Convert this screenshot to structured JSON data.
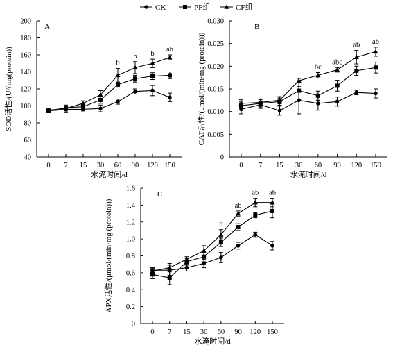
{
  "legend": {
    "items": [
      {
        "label": "CK",
        "marker": "circle"
      },
      {
        "label": "PF组",
        "marker": "square"
      },
      {
        "label": "CF组",
        "marker": "triangle"
      }
    ]
  },
  "chart_data": [
    {
      "type": "line",
      "panel_label": "A",
      "categories": [
        "0",
        "7",
        "15",
        "30",
        "60",
        "90",
        "120",
        "150"
      ],
      "xlabel": "水淹时间/d",
      "ylabel": "SOD活性/(U/(mg(protein))",
      "ylim": [
        40,
        200
      ],
      "yticks": [
        "40",
        "60",
        "80",
        "100",
        "120",
        "140",
        "160",
        "180",
        "200"
      ],
      "series": [
        {
          "name": "CK",
          "marker": "circle",
          "values": [
            94,
            96,
            96,
            97,
            105,
            117,
            118,
            110
          ],
          "errors": [
            2,
            4,
            2,
            4,
            3,
            3,
            6,
            5
          ]
        },
        {
          "name": "PF组",
          "marker": "square",
          "values": [
            94,
            98,
            99,
            107,
            125,
            132,
            135,
            136
          ],
          "errors": [
            2,
            3,
            4,
            4,
            3,
            4,
            4,
            4
          ]
        },
        {
          "name": "CF组",
          "marker": "triangle",
          "values": [
            95,
            97,
            103,
            113,
            136,
            145,
            150,
            157
          ],
          "errors": [
            2,
            3,
            3,
            5,
            8,
            7,
            5,
            3
          ]
        }
      ],
      "annotations": [
        "",
        "",
        "",
        "",
        "b",
        "b",
        "b",
        "ab"
      ]
    },
    {
      "type": "line",
      "panel_label": "B",
      "categories": [
        "0",
        "7",
        "15",
        "30",
        "60",
        "90",
        "120",
        "150"
      ],
      "xlabel": "水淹时间/d",
      "ylabel": "CAT活性/(μmol/(min·mg (protein)))",
      "ylim": [
        0,
        0.03
      ],
      "yticks": [
        "0",
        "0.005",
        "0.010",
        "0.015",
        "0.020",
        "0.025",
        "0.030"
      ],
      "series": [
        {
          "name": "CK",
          "marker": "circle",
          "values": [
            0.0105,
            0.0115,
            0.0102,
            0.0125,
            0.0118,
            0.0122,
            0.0142,
            0.014
          ],
          "errors": [
            0.001,
            0.0008,
            0.001,
            0.003,
            0.0015,
            0.001,
            0.0005,
            0.001
          ]
        },
        {
          "name": "PF组",
          "marker": "square",
          "values": [
            0.0113,
            0.0118,
            0.0122,
            0.0146,
            0.0135,
            0.0157,
            0.019,
            0.0197
          ],
          "errors": [
            0.0008,
            0.0008,
            0.0008,
            0.002,
            0.001,
            0.0012,
            0.001,
            0.0012
          ]
        },
        {
          "name": "CF组",
          "marker": "triangle",
          "values": [
            0.0118,
            0.012,
            0.0125,
            0.0168,
            0.018,
            0.0192,
            0.022,
            0.0232
          ],
          "errors": [
            0.0008,
            0.0008,
            0.0008,
            0.0005,
            0.0006,
            0.0005,
            0.0015,
            0.001
          ]
        }
      ],
      "annotations": [
        "",
        "",
        "",
        "",
        "bc",
        "abc",
        "ab",
        "ab"
      ]
    },
    {
      "type": "line",
      "panel_label": "C",
      "categories": [
        "0",
        "7",
        "15",
        "30",
        "60",
        "90",
        "120",
        "150"
      ],
      "xlabel": "水淹时间/d",
      "ylabel": "APX活性/(μmol/(min·mg (protein)))",
      "ylim": [
        0,
        1.6
      ],
      "yticks": [
        "0",
        "0.2",
        "0.4",
        "0.6",
        "0.8",
        "1.0",
        "1.2",
        "1.4",
        "1.6"
      ],
      "series": [
        {
          "name": "CK",
          "marker": "circle",
          "values": [
            0.63,
            0.63,
            0.66,
            0.71,
            0.78,
            0.92,
            1.05,
            0.92
          ],
          "errors": [
            0.03,
            0.06,
            0.04,
            0.05,
            0.06,
            0.04,
            0.03,
            0.05
          ]
        },
        {
          "name": "PF组",
          "marker": "square",
          "values": [
            0.58,
            0.54,
            0.73,
            0.79,
            0.96,
            1.14,
            1.28,
            1.33
          ],
          "errors": [
            0.05,
            0.08,
            0.04,
            0.06,
            0.05,
            0.04,
            0.03,
            0.08
          ]
        },
        {
          "name": "CF组",
          "marker": "triangle",
          "values": [
            0.62,
            0.66,
            0.76,
            0.86,
            1.05,
            1.3,
            1.43,
            1.43
          ],
          "errors": [
            0.03,
            0.05,
            0.03,
            0.06,
            0.06,
            0.03,
            0.05,
            0.05
          ]
        }
      ],
      "annotations": [
        "",
        "",
        "",
        "",
        "b",
        "ab",
        "ab",
        "ab"
      ]
    }
  ]
}
